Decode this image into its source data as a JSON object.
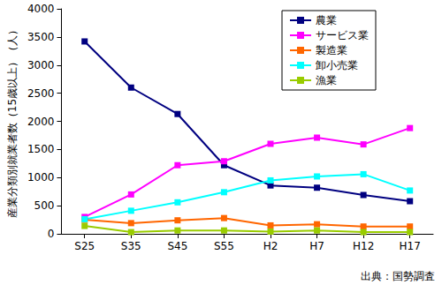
{
  "chart_data": {
    "type": "line",
    "y_label": "産業分類別就業者数（15歳以上）（人）",
    "annotations": [
      "出典：国勢調査"
    ],
    "categories": [
      "S25",
      "S35",
      "S45",
      "S55",
      "H2",
      "H7",
      "H12",
      "H17"
    ],
    "series": [
      {
        "name": "農業",
        "color": "#000080",
        "values": [
          3420,
          2600,
          2130,
          1220,
          860,
          820,
          690,
          580
        ]
      },
      {
        "name": "サービス業",
        "color": "#ff00ff",
        "values": [
          300,
          700,
          1220,
          1290,
          1600,
          1710,
          1590,
          1880
        ]
      },
      {
        "name": "製造業",
        "color": "#ff6600",
        "values": [
          250,
          190,
          240,
          280,
          150,
          170,
          130,
          130
        ]
      },
      {
        "name": "卸小売業",
        "color": "#00ffff",
        "values": [
          260,
          410,
          560,
          740,
          950,
          1020,
          1060,
          770
        ]
      },
      {
        "name": "漁業",
        "color": "#99cc00",
        "values": [
          140,
          30,
          60,
          60,
          40,
          60,
          30,
          30
        ]
      }
    ],
    "ylim": [
      0,
      4000
    ],
    "yticks": [
      0,
      500,
      1000,
      1500,
      2000,
      2500,
      3000,
      3500,
      4000
    ],
    "grid": false,
    "legend": "upper right",
    "marker": "square"
  }
}
